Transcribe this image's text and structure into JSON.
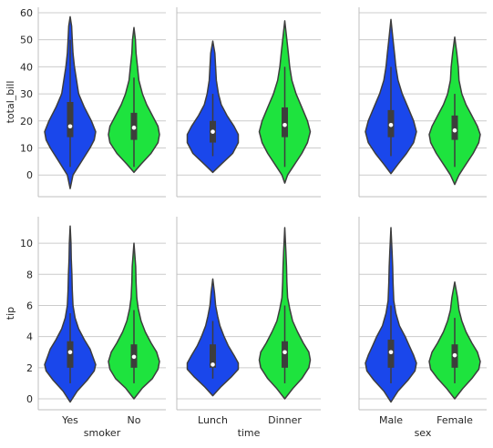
{
  "colors": {
    "left": "#1a47eb",
    "right": "#1ee33e",
    "axis": "#bfbfbf",
    "grid": "#cccccc",
    "box": "#3d3d3d",
    "outline": "#3d3d3d"
  },
  "chart_data": [
    {
      "type": "violin",
      "row": 0,
      "col": 0,
      "ylabel": "total_bill",
      "xlabel": "",
      "categories": [
        "Yes",
        "No"
      ],
      "ylim": [
        -8,
        62
      ],
      "yticks": [
        0,
        10,
        20,
        30,
        40,
        50,
        60
      ],
      "show_ytick_labels": true,
      "show_xtick_labels": false,
      "violins": [
        {
          "category": "Yes",
          "color": "left",
          "min": -5.0,
          "max": 58.5,
          "q1": 14,
          "median": 18,
          "q3": 27,
          "whisker_low": 3,
          "whisker_high": 50,
          "profile": [
            [
              -5,
              0
            ],
            [
              0,
              2
            ],
            [
              5,
              8
            ],
            [
              10,
              14
            ],
            [
              13,
              17
            ],
            [
              16,
              18
            ],
            [
              20,
              15
            ],
            [
              25,
              10
            ],
            [
              30,
              6
            ],
            [
              35,
              4.5
            ],
            [
              40,
              3
            ],
            [
              45,
              2
            ],
            [
              50,
              1.5
            ],
            [
              55,
              1
            ],
            [
              58.5,
              0
            ]
          ]
        },
        {
          "category": "No",
          "color": "right",
          "min": 1.0,
          "max": 54.5,
          "q1": 13,
          "median": 17.5,
          "q3": 23,
          "whisker_low": 3,
          "whisker_high": 36,
          "profile": [
            [
              1,
              0
            ],
            [
              4,
              5
            ],
            [
              8,
              12
            ],
            [
              12,
              17
            ],
            [
              15,
              18
            ],
            [
              18,
              17
            ],
            [
              22,
              13
            ],
            [
              26,
              9
            ],
            [
              30,
              6
            ],
            [
              35,
              3.5
            ],
            [
              40,
              2.5
            ],
            [
              45,
              1.5
            ],
            [
              50,
              1
            ],
            [
              54.5,
              0
            ]
          ]
        }
      ]
    },
    {
      "type": "violin",
      "row": 0,
      "col": 1,
      "ylabel": "",
      "xlabel": "",
      "categories": [
        "Lunch",
        "Dinner"
      ],
      "ylim": [
        -8,
        62
      ],
      "yticks": [
        0,
        10,
        20,
        30,
        40,
        50,
        60
      ],
      "show_ytick_labels": false,
      "show_xtick_labels": false,
      "violins": [
        {
          "category": "Lunch",
          "color": "left",
          "min": 1.0,
          "max": 49.5,
          "q1": 12,
          "median": 16,
          "q3": 20,
          "whisker_low": 7,
          "whisker_high": 30,
          "profile": [
            [
              1,
              0
            ],
            [
              4,
              6
            ],
            [
              8,
              14
            ],
            [
              12,
              18
            ],
            [
              15,
              18
            ],
            [
              18,
              15
            ],
            [
              22,
              10
            ],
            [
              26,
              6
            ],
            [
              30,
              4
            ],
            [
              35,
              2.5
            ],
            [
              40,
              2
            ],
            [
              45,
              1.5
            ],
            [
              49.5,
              0
            ]
          ]
        },
        {
          "category": "Dinner",
          "color": "right",
          "min": -3.0,
          "max": 57.0,
          "q1": 14,
          "median": 18.5,
          "q3": 25,
          "whisker_low": 3,
          "whisker_high": 40,
          "profile": [
            [
              -3,
              0
            ],
            [
              0,
              2
            ],
            [
              4,
              7
            ],
            [
              8,
              12
            ],
            [
              12,
              16
            ],
            [
              16,
              18
            ],
            [
              20,
              16
            ],
            [
              25,
              12
            ],
            [
              30,
              8
            ],
            [
              35,
              5
            ],
            [
              40,
              3.5
            ],
            [
              45,
              2.5
            ],
            [
              50,
              1.5
            ],
            [
              57,
              0
            ]
          ]
        }
      ]
    },
    {
      "type": "violin",
      "row": 0,
      "col": 2,
      "ylabel": "",
      "xlabel": "",
      "categories": [
        "Male",
        "Female"
      ],
      "ylim": [
        -8,
        62
      ],
      "yticks": [
        0,
        10,
        20,
        30,
        40,
        50,
        60
      ],
      "show_ytick_labels": false,
      "show_xtick_labels": false,
      "violins": [
        {
          "category": "Male",
          "color": "left",
          "min": 0.5,
          "max": 57.5,
          "q1": 14,
          "median": 18.5,
          "q3": 24,
          "whisker_low": 7,
          "whisker_high": 40,
          "profile": [
            [
              0.5,
              0
            ],
            [
              4,
              5
            ],
            [
              8,
              11
            ],
            [
              12,
              16
            ],
            [
              16,
              18
            ],
            [
              20,
              16
            ],
            [
              25,
              12
            ],
            [
              30,
              8
            ],
            [
              35,
              5
            ],
            [
              40,
              3.5
            ],
            [
              45,
              2.5
            ],
            [
              50,
              1.5
            ],
            [
              57.5,
              0
            ]
          ]
        },
        {
          "category": "Female",
          "color": "right",
          "min": -3.5,
          "max": 51.0,
          "q1": 13,
          "median": 16.5,
          "q3": 22,
          "whisker_low": 3,
          "whisker_high": 30,
          "profile": [
            [
              -3.5,
              0
            ],
            [
              0,
              3
            ],
            [
              4,
              8
            ],
            [
              8,
              13
            ],
            [
              12,
              17
            ],
            [
              15,
              18
            ],
            [
              18,
              16
            ],
            [
              22,
              12
            ],
            [
              26,
              8
            ],
            [
              30,
              5
            ],
            [
              35,
              3
            ],
            [
              40,
              2.5
            ],
            [
              45,
              1.5
            ],
            [
              51,
              0
            ]
          ]
        }
      ]
    },
    {
      "type": "violin",
      "row": 1,
      "col": 0,
      "ylabel": "tip",
      "xlabel": "smoker",
      "categories": [
        "Yes",
        "No"
      ],
      "ylim": [
        -0.7,
        11.7
      ],
      "yticks": [
        0,
        2,
        4,
        6,
        8,
        10
      ],
      "show_ytick_labels": true,
      "show_xtick_labels": true,
      "violins": [
        {
          "category": "Yes",
          "color": "left",
          "min": -0.2,
          "max": 11.1,
          "q1": 2.0,
          "median": 3.0,
          "q3": 3.7,
          "whisker_low": 1.0,
          "whisker_high": 5.5,
          "profile": [
            [
              -0.2,
              0
            ],
            [
              0.5,
              5
            ],
            [
              1.2,
              12
            ],
            [
              1.8,
              17
            ],
            [
              2.2,
              18
            ],
            [
              2.7,
              16
            ],
            [
              3.2,
              14
            ],
            [
              3.8,
              10
            ],
            [
              4.5,
              6
            ],
            [
              5.2,
              3.5
            ],
            [
              6,
              2
            ],
            [
              7,
              1.5
            ],
            [
              8,
              1.2
            ],
            [
              9,
              0.8
            ],
            [
              10,
              0.6
            ],
            [
              11.1,
              0
            ]
          ]
        },
        {
          "category": "No",
          "color": "right",
          "min": 0.0,
          "max": 10.0,
          "q1": 2.0,
          "median": 2.7,
          "q3": 3.5,
          "whisker_low": 1.0,
          "whisker_high": 5.7,
          "profile": [
            [
              0,
              0
            ],
            [
              0.7,
              6
            ],
            [
              1.3,
              13
            ],
            [
              1.9,
              17
            ],
            [
              2.4,
              18
            ],
            [
              3,
              16
            ],
            [
              3.6,
              12
            ],
            [
              4.3,
              8
            ],
            [
              5,
              5
            ],
            [
              5.8,
              3
            ],
            [
              6.5,
              2
            ],
            [
              7.5,
              1.5
            ],
            [
              8.5,
              1.2
            ],
            [
              10,
              0
            ]
          ]
        }
      ]
    },
    {
      "type": "violin",
      "row": 1,
      "col": 1,
      "ylabel": "",
      "xlabel": "time",
      "categories": [
        "Lunch",
        "Dinner"
      ],
      "ylim": [
        -0.7,
        11.7
      ],
      "yticks": [
        0,
        2,
        4,
        6,
        8,
        10
      ],
      "show_ytick_labels": false,
      "show_xtick_labels": true,
      "violins": [
        {
          "category": "Lunch",
          "color": "left",
          "min": 0.2,
          "max": 7.7,
          "q1": 2.0,
          "median": 2.2,
          "q3": 3.5,
          "whisker_low": 1.3,
          "whisker_high": 5.0,
          "profile": [
            [
              0.2,
              0
            ],
            [
              0.8,
              6
            ],
            [
              1.4,
              13
            ],
            [
              1.9,
              18
            ],
            [
              2.3,
              18
            ],
            [
              2.8,
              15
            ],
            [
              3.4,
              11
            ],
            [
              4,
              8
            ],
            [
              4.7,
              5
            ],
            [
              5.3,
              3.5
            ],
            [
              6,
              2
            ],
            [
              6.8,
              1.2
            ],
            [
              7.7,
              0
            ]
          ]
        },
        {
          "category": "Dinner",
          "color": "right",
          "min": 0.0,
          "max": 11.0,
          "q1": 2.0,
          "median": 3.0,
          "q3": 3.7,
          "whisker_low": 1.0,
          "whisker_high": 6.0,
          "profile": [
            [
              0,
              0
            ],
            [
              0.7,
              6
            ],
            [
              1.3,
              12
            ],
            [
              2,
              17
            ],
            [
              2.5,
              18
            ],
            [
              3,
              17
            ],
            [
              3.6,
              13
            ],
            [
              4.3,
              9
            ],
            [
              5,
              5.5
            ],
            [
              5.8,
              3.5
            ],
            [
              6.5,
              2
            ],
            [
              7.5,
              1.5
            ],
            [
              8.5,
              1.2
            ],
            [
              9.5,
              0.8
            ],
            [
              11,
              0
            ]
          ]
        }
      ]
    },
    {
      "type": "violin",
      "row": 1,
      "col": 2,
      "ylabel": "",
      "xlabel": "sex",
      "categories": [
        "Male",
        "Female"
      ],
      "ylim": [
        -0.7,
        11.7
      ],
      "yticks": [
        0,
        2,
        4,
        6,
        8,
        10
      ],
      "show_ytick_labels": false,
      "show_xtick_labels": true,
      "violins": [
        {
          "category": "Male",
          "color": "left",
          "min": -0.2,
          "max": 11.0,
          "q1": 2.0,
          "median": 3.0,
          "q3": 3.8,
          "whisker_low": 1.0,
          "whisker_high": 6.0,
          "profile": [
            [
              -0.2,
              0
            ],
            [
              0.5,
              5
            ],
            [
              1.2,
              12
            ],
            [
              1.8,
              17
            ],
            [
              2.3,
              18
            ],
            [
              2.8,
              16
            ],
            [
              3.4,
              13
            ],
            [
              4,
              10
            ],
            [
              4.7,
              6
            ],
            [
              5.5,
              3.5
            ],
            [
              6.3,
              2
            ],
            [
              7.5,
              1.5
            ],
            [
              8.5,
              1.2
            ],
            [
              9.5,
              0.8
            ],
            [
              11,
              0
            ]
          ]
        },
        {
          "category": "Female",
          "color": "right",
          "min": 0.0,
          "max": 7.5,
          "q1": 2.0,
          "median": 2.8,
          "q3": 3.5,
          "whisker_low": 1.0,
          "whisker_high": 5.2,
          "profile": [
            [
              0,
              0
            ],
            [
              0.7,
              6
            ],
            [
              1.3,
              12
            ],
            [
              1.9,
              17
            ],
            [
              2.4,
              18
            ],
            [
              3,
              16
            ],
            [
              3.6,
              12
            ],
            [
              4.3,
              8
            ],
            [
              5,
              5
            ],
            [
              5.7,
              3
            ],
            [
              6.5,
              2
            ],
            [
              7.5,
              0
            ]
          ]
        }
      ]
    }
  ]
}
